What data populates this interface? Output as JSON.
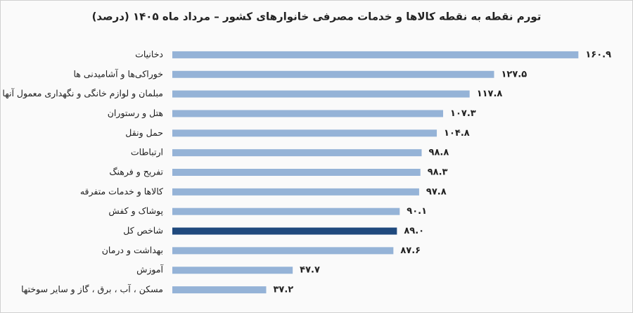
{
  "chart_data": {
    "type": "bar",
    "orientation": "horizontal",
    "title": "تورم نقطه به نقطه کالاها و خدمات مصرفی خانوارهای کشور – مرداد ماه ۱۴۰۵ (درصد)",
    "categories": [
      "دخانیات",
      "خوراکی‌ها و آشامیدنی ها",
      "مبلمان و لوازم خانگی و نگهداری معمول آنها",
      "هتل و رستوران",
      "حمل ونقل",
      "ارتباطات",
      "تفریح و فرهنگ",
      "کالاها و خدمات متفرقه",
      "پوشاک و کفش",
      "شاخص کل",
      "بهداشت و درمان",
      "آموزش",
      "مسکن ، آب ، برق ، گاز و سایر سوختها"
    ],
    "values": [
      160.9,
      127.5,
      117.8,
      107.3,
      104.8,
      98.8,
      98.3,
      97.8,
      90.1,
      89.0,
      87.6,
      47.7,
      37.2
    ],
    "value_labels": [
      "۱۶۰.۹",
      "۱۲۷.۵",
      "۱۱۷.۸",
      "۱۰۷.۳",
      "۱۰۴.۸",
      "۹۸.۸",
      "۹۸.۳",
      "۹۷.۸",
      "۹۰.۱",
      "۸۹.۰",
      "۸۷.۶",
      "۴۷.۷",
      "۳۷.۲"
    ],
    "colors": [
      "#95b3d7",
      "#95b3d7",
      "#95b3d7",
      "#95b3d7",
      "#95b3d7",
      "#95b3d7",
      "#95b3d7",
      "#95b3d7",
      "#95b3d7",
      "#1f497d",
      "#95b3d7",
      "#95b3d7",
      "#95b3d7"
    ],
    "xlim": [
      0,
      170
    ]
  }
}
